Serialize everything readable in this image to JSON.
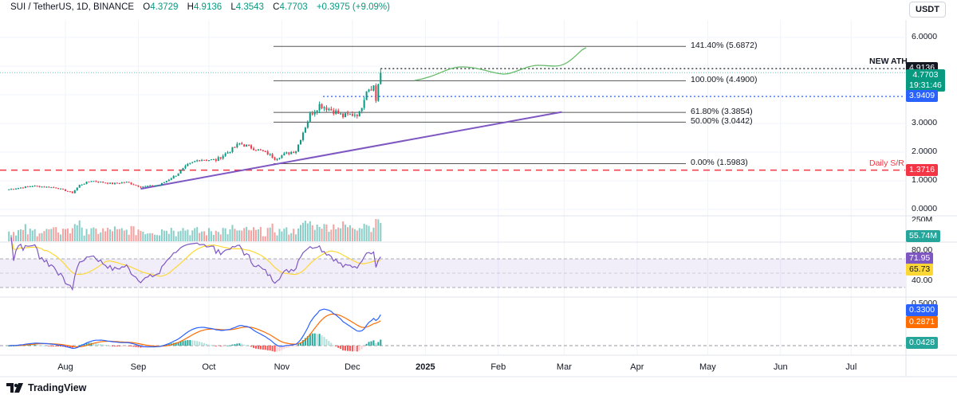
{
  "header": {
    "symbol": "SUI / TetherUS, 1D, BINANCE",
    "open_label": "O",
    "open": "4.3729",
    "high_label": "H",
    "high": "4.9136",
    "low_label": "L",
    "low": "4.3543",
    "close_label": "C",
    "close": "4.7703",
    "change": "+0.3975 (+9.09%)"
  },
  "currency_button": "USDT",
  "price_axis": {
    "ticks": [
      "0.0000",
      "1.0000",
      "2.0000",
      "3.0000",
      "6.0000"
    ],
    "tick_values": [
      0,
      1,
      2,
      3,
      6
    ],
    "ath_tag": "4.9136",
    "last_price_tag": "4.7703",
    "countdown": "19:31:46",
    "blue_level_tag": "3.9409",
    "sr_tag": "1.3716"
  },
  "annotations": {
    "new_ath": "NEW ATH",
    "daily_sr": "Daily S/R",
    "fib_levels": [
      {
        "label": "141.40% (5.6872)",
        "value": 5.6872
      },
      {
        "label": "100.00% (4.4900)",
        "value": 4.49
      },
      {
        "label": "61.80% (3.3854)",
        "value": 3.3854
      },
      {
        "label": "50.00% (3.0442)",
        "value": 3.0442
      },
      {
        "label": "0.00% (1.5983)",
        "value": 1.5983
      }
    ],
    "ath_value": 4.9136,
    "blue_level_value": 3.9409,
    "sr_value": 1.3716,
    "last_value": 4.7703
  },
  "volume_pane": {
    "tick": "250M",
    "tag": "55.74M"
  },
  "rsi_pane": {
    "ticks": [
      "80.00",
      "40.00"
    ],
    "rsi_tag": "71.95",
    "ma_tag": "65.73"
  },
  "macd_pane": {
    "tick": "0.5000",
    "macd_tag": "0.3300",
    "signal_tag": "0.2871",
    "hist_tag": "0.0428"
  },
  "time_axis": {
    "labels": [
      "Aug",
      "Sep",
      "Oct",
      "Nov",
      "Dec",
      "2025",
      "Feb",
      "Mar",
      "Apr",
      "May",
      "Jun",
      "Jul"
    ],
    "dates": [
      "2024-08-01",
      "2024-09-01",
      "2024-10-01",
      "2024-11-01",
      "2024-12-01",
      "2025-01-01",
      "2025-02-01",
      "2025-03-01",
      "2025-04-01",
      "2025-05-01",
      "2025-06-01",
      "2025-07-01"
    ]
  },
  "logo": "TradingView",
  "colors": {
    "up": "#089981",
    "down": "#f23645",
    "blue": "#2962ff",
    "purple": "#7e57c2",
    "sr": "#f23645",
    "orange": "#ff6d00",
    "yellow": "#fdd835"
  },
  "chart_data": {
    "type": "candlestick",
    "title": "SUI / TetherUS, 1D, BINANCE",
    "close_keypoints": [
      [
        "2024-07-08",
        0.7
      ],
      [
        "2024-07-18",
        0.82
      ],
      [
        "2024-07-28",
        0.76
      ],
      [
        "2024-08-04",
        0.58
      ],
      [
        "2024-08-07",
        0.85
      ],
      [
        "2024-08-12",
        1.0
      ],
      [
        "2024-08-21",
        0.9
      ],
      [
        "2024-08-27",
        0.95
      ],
      [
        "2024-09-02",
        0.79
      ],
      [
        "2024-09-10",
        0.85
      ],
      [
        "2024-09-17",
        1.2
      ],
      [
        "2024-09-22",
        1.55
      ],
      [
        "2024-09-27",
        1.75
      ],
      [
        "2024-10-04",
        1.72
      ],
      [
        "2024-10-10",
        2.05
      ],
      [
        "2024-10-14",
        2.3
      ],
      [
        "2024-10-21",
        2.1
      ],
      [
        "2024-10-26",
        1.95
      ],
      [
        "2024-10-29",
        1.78
      ],
      [
        "2024-11-03",
        1.95
      ],
      [
        "2024-11-07",
        2.05
      ],
      [
        "2024-11-10",
        2.7
      ],
      [
        "2024-11-13",
        3.3
      ],
      [
        "2024-11-17",
        3.65
      ],
      [
        "2024-11-20",
        3.55
      ],
      [
        "2024-11-24",
        3.4
      ],
      [
        "2024-11-27",
        3.25
      ],
      [
        "2024-11-30",
        3.3
      ],
      [
        "2024-12-04",
        3.35
      ],
      [
        "2024-12-07",
        4.2
      ],
      [
        "2024-12-10",
        4.3
      ],
      [
        "2024-12-11",
        3.8
      ],
      [
        "2024-12-12",
        4.37
      ]
    ],
    "last_candle": {
      "open": 4.3729,
      "high": 4.9136,
      "low": 4.3543,
      "close": 4.7703
    },
    "ylim": [
      0,
      6.4
    ],
    "trendline": [
      [
        "2024-09-02",
        0.72
      ],
      [
        "2025-02-28",
        3.4
      ]
    ],
    "projection_end": 5.6872
  }
}
